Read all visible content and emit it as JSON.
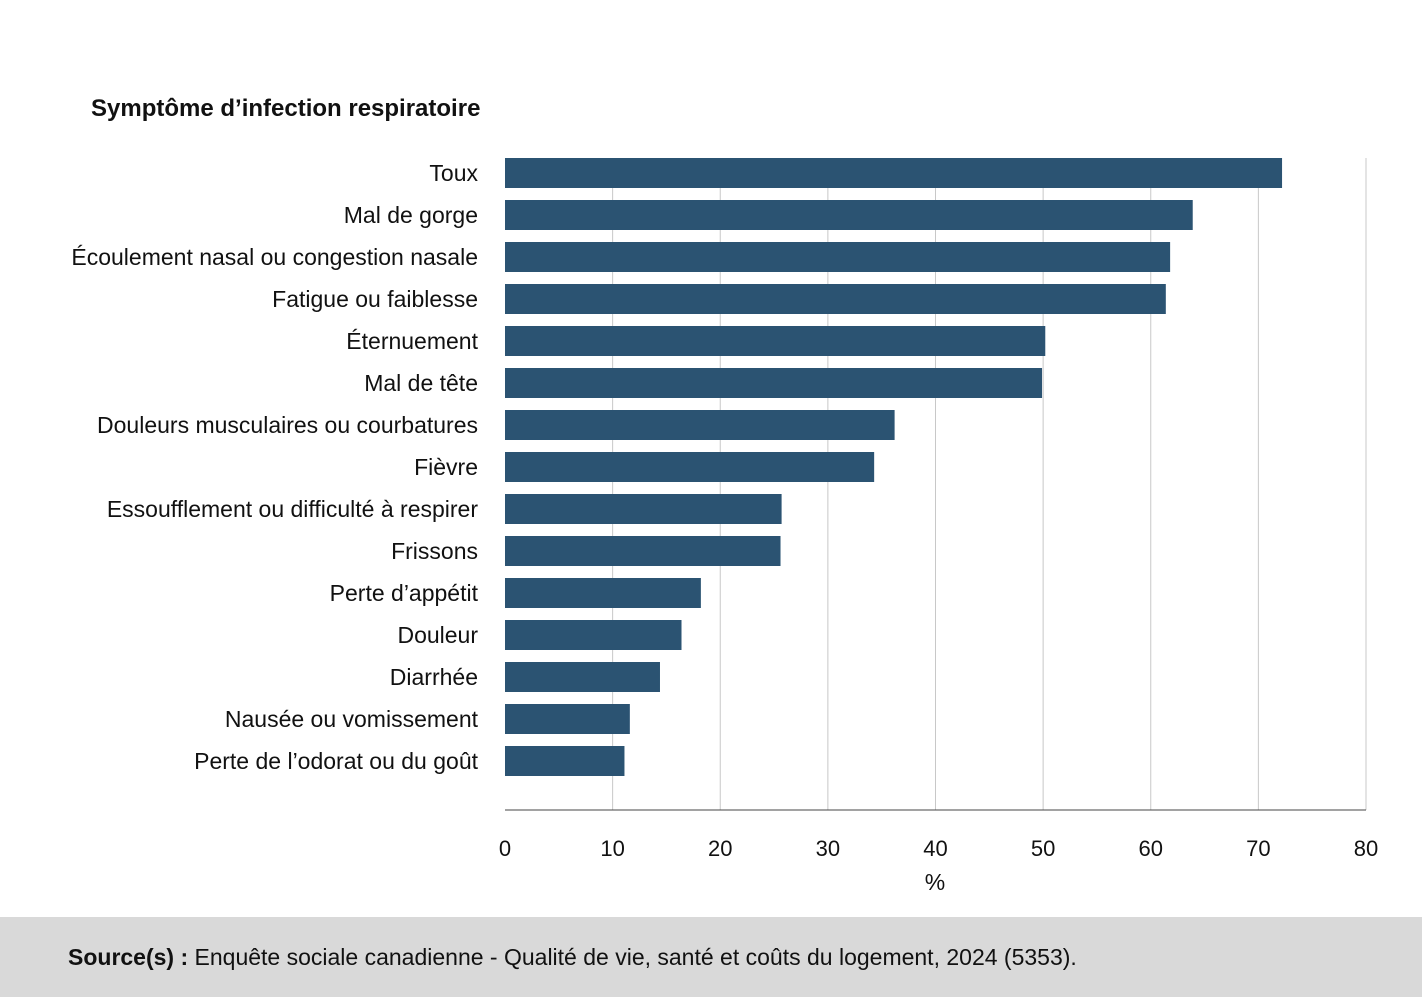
{
  "chart_data": {
    "type": "bar",
    "orientation": "horizontal",
    "title": "Symptôme d’infection respiratoire",
    "xlabel": "%",
    "ylabel": "",
    "xlim": [
      0,
      80
    ],
    "xticks": [
      "0",
      "10",
      "20",
      "30",
      "40",
      "50",
      "60",
      "70",
      "80"
    ],
    "grid": true,
    "categories": [
      "Toux",
      "Mal de gorge",
      "Écoulement nasal ou congestion nasale",
      "Fatigue ou faiblesse",
      "Éternuement",
      "Mal de tête",
      "Douleurs musculaires ou courbatures",
      "Fièvre",
      "Essoufflement ou difficulté à respirer",
      "Frissons",
      "Perte d’appétit",
      "Douleur",
      "Diarrhée",
      "Nausée ou vomissement",
      "Perte de l’odorat ou du goût"
    ],
    "values": [
      72.2,
      63.9,
      61.8,
      61.4,
      50.2,
      49.9,
      36.2,
      34.3,
      25.7,
      25.6,
      18.2,
      16.4,
      14.4,
      11.6,
      11.1
    ],
    "bar_color": "#2b5372",
    "grid_color": "#c8c8c8"
  },
  "footer": {
    "source_label": "Source(s) :",
    "source_text": " Enquête sociale canadienne - Qualité de vie, santé et coûts du logement, 2024 (5353)."
  }
}
